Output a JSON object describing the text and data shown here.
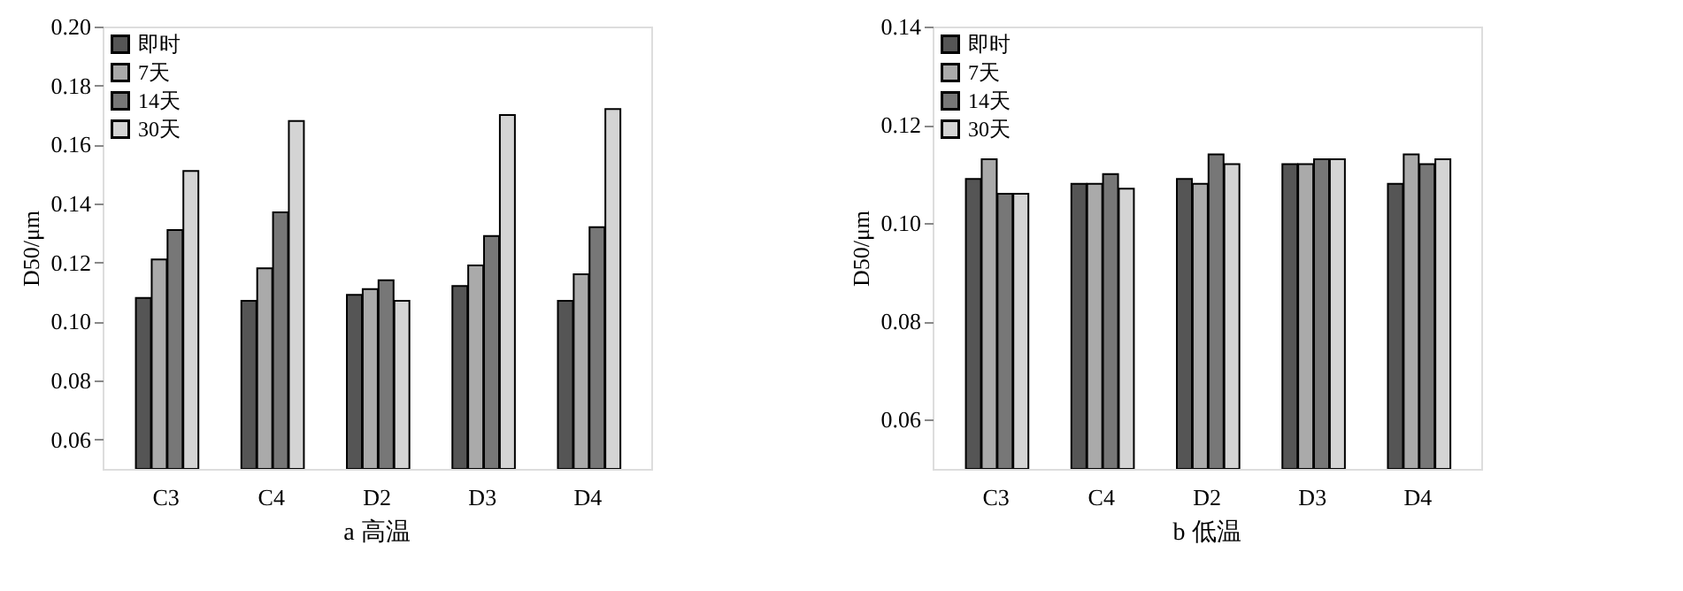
{
  "chart_data": [
    {
      "type": "bar",
      "title": "a 高温",
      "ylabel": "D50/μm",
      "categories": [
        "C3",
        "C4",
        "D2",
        "D3",
        "D4"
      ],
      "ylim": [
        0.05,
        0.2
      ],
      "yticks": [
        {
          "value": 0.06,
          "label": "0.06"
        },
        {
          "value": 0.08,
          "label": "0.08"
        },
        {
          "value": 0.1,
          "label": "0.10"
        },
        {
          "value": 0.12,
          "label": "0.12"
        },
        {
          "value": 0.14,
          "label": "0.14"
        },
        {
          "value": 0.16,
          "label": "0.16"
        },
        {
          "value": 0.18,
          "label": "0.18"
        },
        {
          "value": 0.2,
          "label": "0.20"
        }
      ],
      "grid": false,
      "legend": "top left",
      "series": [
        {
          "name": "即时",
          "color": "#555555",
          "values": [
            0.108,
            0.107,
            0.109,
            0.112,
            0.107
          ]
        },
        {
          "name": "7天",
          "color": "#aaaaaa",
          "values": [
            0.121,
            0.118,
            0.111,
            0.119,
            0.116
          ]
        },
        {
          "name": "14天",
          "color": "#777777",
          "values": [
            0.131,
            0.137,
            0.114,
            0.129,
            0.132
          ]
        },
        {
          "name": "30天",
          "color": "#d4d4d4",
          "values": [
            0.151,
            0.168,
            0.107,
            0.17,
            0.172
          ]
        }
      ]
    },
    {
      "type": "bar",
      "title": "b 低温",
      "ylabel": "D50/μm",
      "categories": [
        "C3",
        "C4",
        "D2",
        "D3",
        "D4"
      ],
      "ylim": [
        0.05,
        0.14
      ],
      "yticks": [
        {
          "value": 0.06,
          "label": "0.06"
        },
        {
          "value": 0.08,
          "label": "0.08"
        },
        {
          "value": 0.1,
          "label": "0.10"
        },
        {
          "value": 0.12,
          "label": "0.12"
        },
        {
          "value": 0.14,
          "label": "0.14"
        }
      ],
      "grid": false,
      "legend": "top left",
      "series": [
        {
          "name": "即时",
          "color": "#555555",
          "values": [
            0.109,
            0.108,
            0.109,
            0.112,
            0.108
          ]
        },
        {
          "name": "7天",
          "color": "#aaaaaa",
          "values": [
            0.113,
            0.108,
            0.108,
            0.112,
            0.114
          ]
        },
        {
          "name": "14天",
          "color": "#777777",
          "values": [
            0.106,
            0.11,
            0.114,
            0.113,
            0.112
          ]
        },
        {
          "name": "30天",
          "color": "#d4d4d4",
          "values": [
            0.106,
            0.107,
            0.112,
            0.113,
            0.113
          ]
        }
      ]
    }
  ]
}
